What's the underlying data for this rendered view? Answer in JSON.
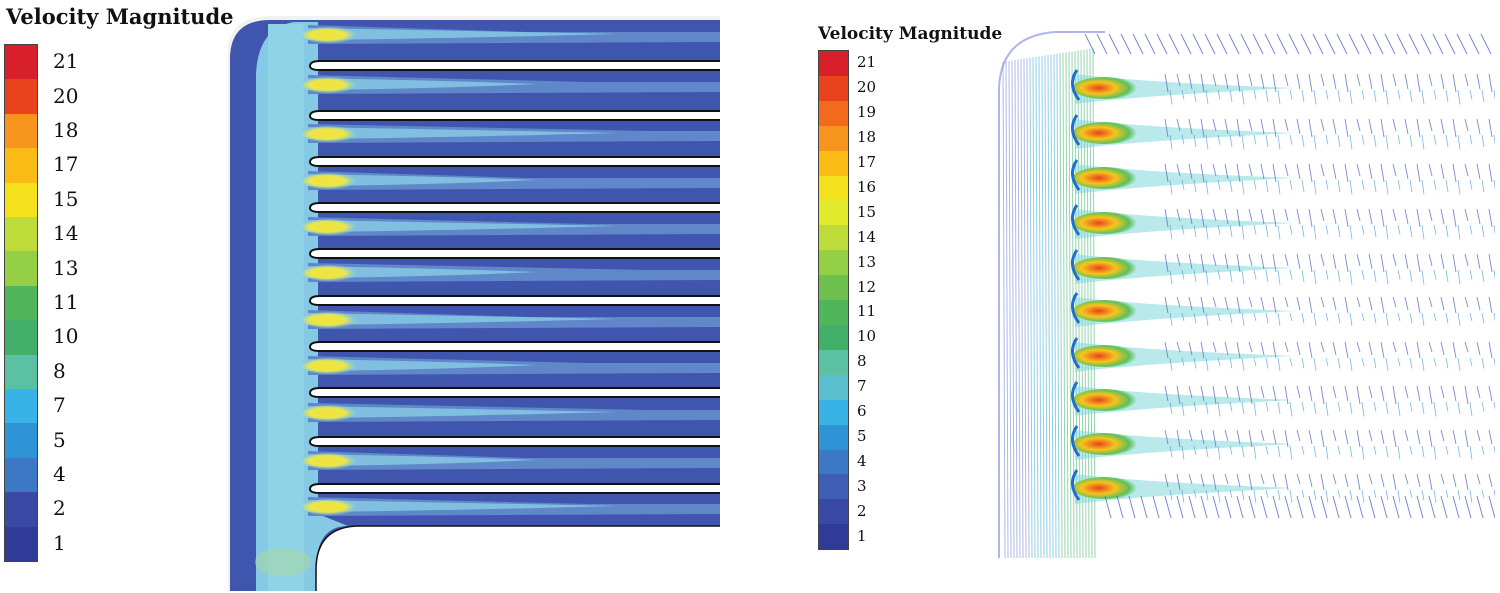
{
  "left_panel": {
    "title": "Velocity Magnitude",
    "tick_labels": [
      "21",
      "20",
      "18",
      "17",
      "15",
      "14",
      "13",
      "11",
      "10",
      "8",
      "7",
      "5",
      "4",
      "2",
      "1"
    ],
    "render": "filled velocity contour plot"
  },
  "right_panel": {
    "title": "Velocity Magnitude",
    "tick_labels": [
      "21",
      "20",
      "19",
      "18",
      "17",
      "16",
      "15",
      "14",
      "13",
      "12",
      "11",
      "10",
      "8",
      "7",
      "6",
      "5",
      "4",
      "3",
      "2",
      "1"
    ],
    "render": "velocity vector plot"
  },
  "colormap": [
    "#d7202a",
    "#e8421f",
    "#f26b1c",
    "#f7941d",
    "#fbbb17",
    "#f4e01b",
    "#e2ea2b",
    "#bddc3a",
    "#95cf45",
    "#6ec14e",
    "#4fb75a",
    "#43b069",
    "#5cc0a2",
    "#5bbfd0",
    "#39b3e6",
    "#2f94d6",
    "#3d78c4",
    "#3e5db4",
    "#3a49a4",
    "#2f3b96"
  ],
  "colors": {
    "background": "#ffffff",
    "field_dark": "#4055ad",
    "field_mid": "#5f87c9",
    "field_light": "#86c9e4",
    "field_cyan": "#8fd3e6",
    "jet_yellow": "#f2e23a",
    "jet_red": "#e8421f",
    "fin_edge": "#111111"
  }
}
